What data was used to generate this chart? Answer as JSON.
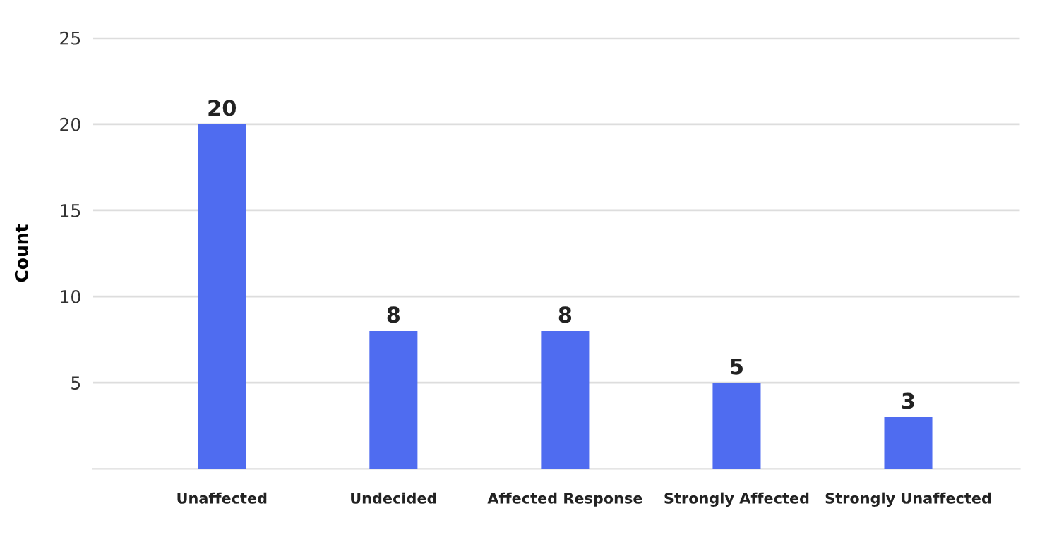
{
  "chart_data": {
    "type": "bar",
    "ylabel": "Count",
    "categories": [
      "Unaffected",
      "Undecided",
      "Affected Response",
      "Strongly Affected",
      "Strongly Unaffected"
    ],
    "values": [
      20,
      8,
      8,
      5,
      3
    ],
    "data_labels": true,
    "color": "#4f6cf0",
    "ylim": [
      0,
      25
    ],
    "yticks": [
      5,
      10,
      15,
      20,
      25
    ],
    "grid": "y"
  }
}
